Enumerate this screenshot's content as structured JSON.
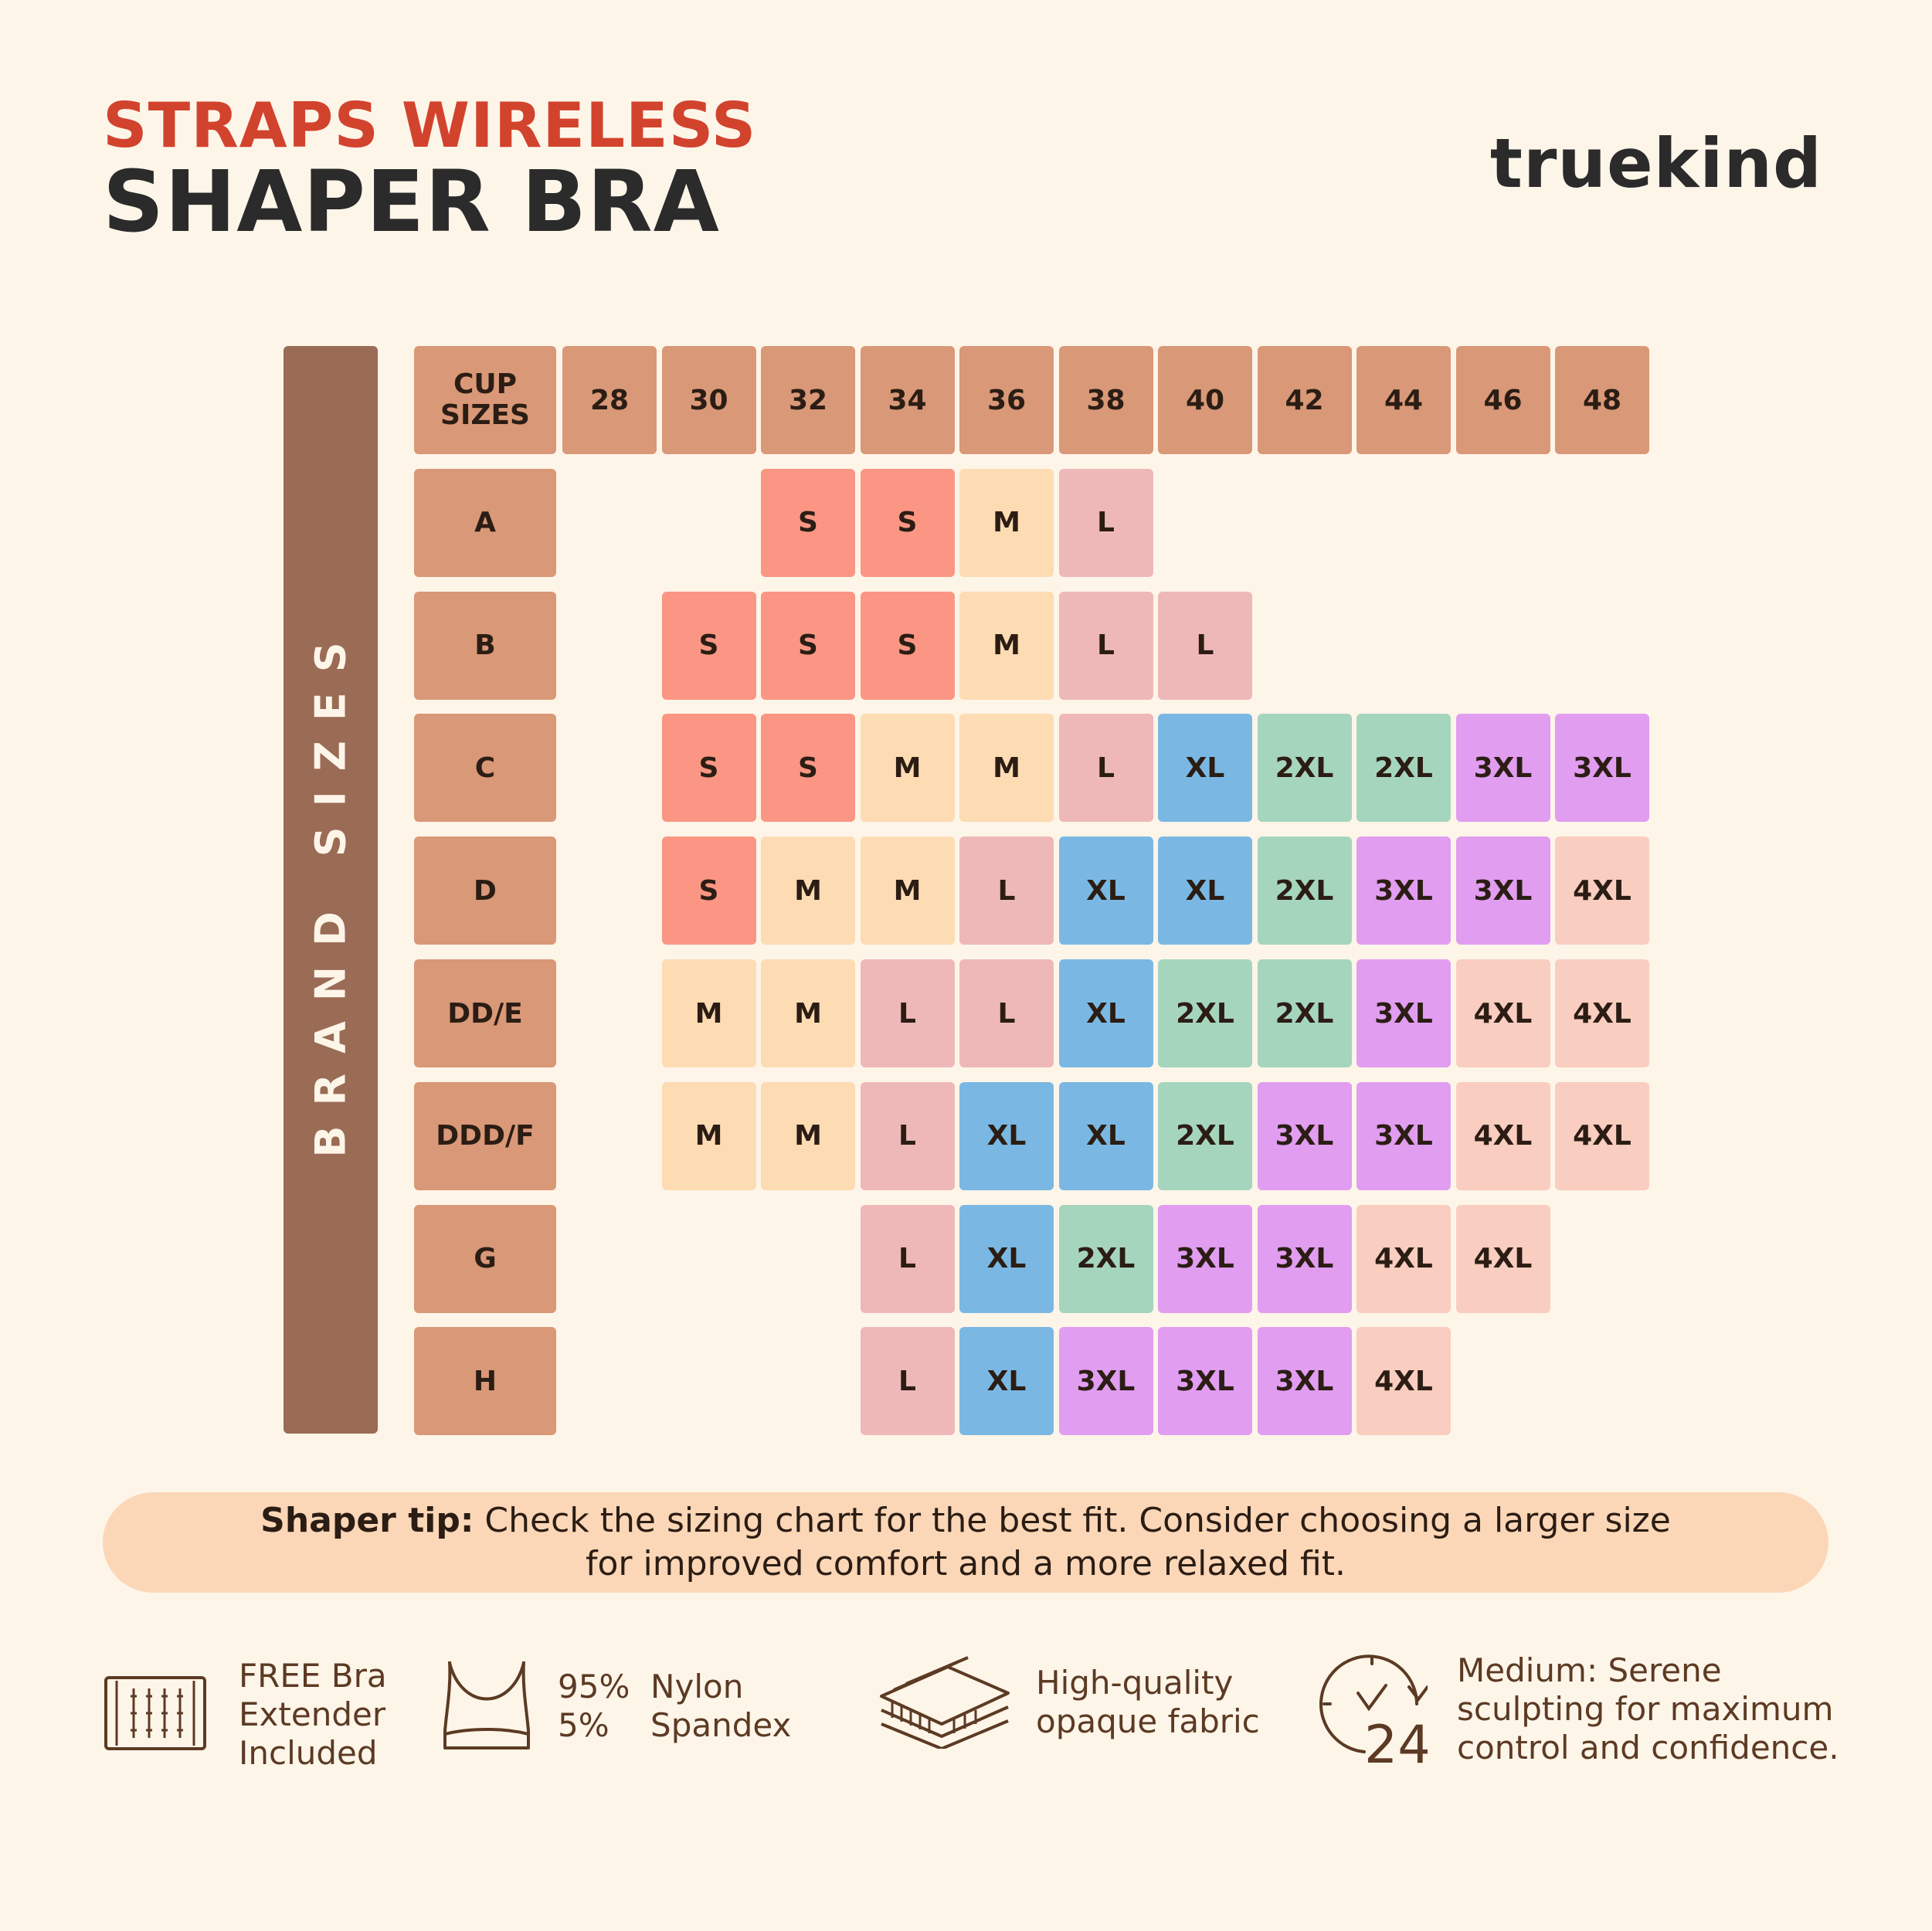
{
  "header": {
    "title_line1": "STRAPS WIRELESS",
    "title_line2": "SHAPER BRA",
    "brand": "truekind"
  },
  "chart_data": {
    "type": "table",
    "row_axis_label": "BRAND SIZES",
    "corner_label": [
      "CUP",
      "SIZES"
    ],
    "columns": [
      "28",
      "30",
      "32",
      "34",
      "36",
      "38",
      "40",
      "42",
      "44",
      "46",
      "48"
    ],
    "rows": [
      {
        "cup": "A",
        "sizes": [
          null,
          null,
          "S",
          "S",
          "M",
          "L",
          null,
          null,
          null,
          null,
          null
        ]
      },
      {
        "cup": "B",
        "sizes": [
          null,
          "S",
          "S",
          "S",
          "M",
          "L",
          "L",
          null,
          null,
          null,
          null
        ]
      },
      {
        "cup": "C",
        "sizes": [
          null,
          "S",
          "S",
          "M",
          "M",
          "L",
          "XL",
          "2XL",
          "2XL",
          "3XL",
          "3XL"
        ]
      },
      {
        "cup": "D",
        "sizes": [
          null,
          "S",
          "M",
          "M",
          "L",
          "XL",
          "XL",
          "2XL",
          "3XL",
          "3XL",
          "4XL"
        ]
      },
      {
        "cup": "DD/E",
        "sizes": [
          null,
          "M",
          "M",
          "L",
          "L",
          "XL",
          "2XL",
          "2XL",
          "3XL",
          "4XL",
          "4XL"
        ]
      },
      {
        "cup": "DDD/F",
        "sizes": [
          null,
          "M",
          "M",
          "L",
          "XL",
          "XL",
          "2XL",
          "3XL",
          "3XL",
          "4XL",
          "4XL"
        ]
      },
      {
        "cup": "G",
        "sizes": [
          null,
          null,
          null,
          "L",
          "XL",
          "2XL",
          "3XL",
          "3XL",
          "4XL",
          "4XL",
          null
        ]
      },
      {
        "cup": "H",
        "sizes": [
          null,
          null,
          null,
          "L",
          "XL",
          "3XL",
          "3XL",
          "3XL",
          "4XL",
          null,
          null
        ]
      }
    ],
    "size_colors": {
      "S": "#fa9683",
      "M": "#fddbb3",
      "L": "#efb8b8",
      "XL": "#7ab8e3",
      "2XL": "#a6d5be",
      "3XL": "#e19df0",
      "4XL": "#f9cdbf"
    },
    "header_color": "#d99877",
    "axis_bar_color": "#9a6b55"
  },
  "tip": {
    "label": "Shaper tip:",
    "line1_rest": " Check the sizing chart for the best fit. Consider choosing a larger size",
    "line2": "for improved comfort and a more relaxed fit."
  },
  "features": [
    {
      "icon": "bra-extender-icon",
      "lines": [
        "FREE Bra",
        "Extender",
        "Included"
      ]
    },
    {
      "icon": "bra-outline-icon",
      "lines": [
        "95%  Nylon",
        "5%    Spandex"
      ]
    },
    {
      "icon": "fabric-layers-icon",
      "lines": [
        "High-quality",
        "opaque fabric"
      ]
    },
    {
      "icon": "clock-24-icon",
      "lines": [
        "Medium: Serene",
        "sculpting for maximum",
        "control and confidence."
      ]
    }
  ]
}
